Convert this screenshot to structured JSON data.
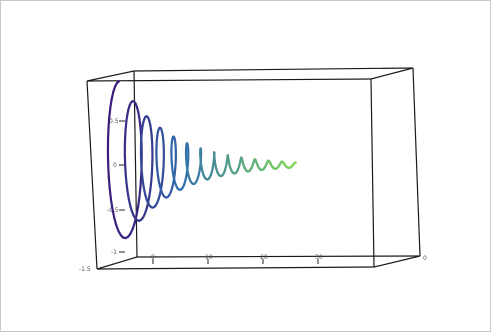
{
  "chart_data": {
    "type": "line",
    "subtype": "3d-parametric-helix",
    "title": "",
    "xlabel": "",
    "ylabel": "",
    "zlabel": "",
    "x_ticks": [
      "0",
      "10",
      "20",
      "30"
    ],
    "y_ticks": [
      "-1",
      "-0.5",
      "0",
      "0.5"
    ],
    "y_corner_tick": "-1.5",
    "x_end_tick": "0",
    "xlim": [
      0,
      35
    ],
    "ylim": [
      -1.5,
      1.0
    ],
    "grid": false,
    "legend": "none",
    "series": [
      {
        "x": [
          0.0,
          2.0,
          4.0,
          6.0,
          8.0,
          10.0,
          12.0,
          14.0,
          16.0,
          18.0,
          20.0,
          22.0,
          24.0,
          26.0
        ],
        "y_peak": [
          0.95,
          0.73,
          0.56,
          0.43,
          0.33,
          0.26,
          0.2,
          0.15,
          0.12,
          0.09,
          0.07,
          0.05,
          0.04,
          0.03
        ],
        "color_start": "#3b1a7a",
        "color_mid": "#2f6fae",
        "color_end": "#7ed957"
      }
    ]
  },
  "colors": {
    "box": "#1a1a1a",
    "axis": "#222222",
    "frame_border": "#c8c8c8"
  }
}
